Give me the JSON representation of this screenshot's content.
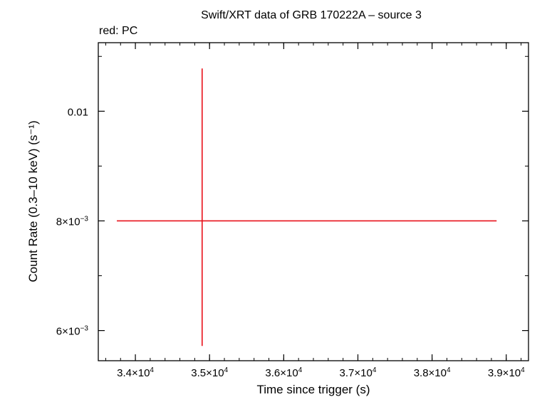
{
  "chart_data": {
    "type": "scatter",
    "title": "Swift/XRT data of GRB 170222A – source 3",
    "subtitle": "red: PC",
    "xlabel": "Time since trigger (s)",
    "ylabel": "Count Rate (0.3–10 keV) (s⁻¹)",
    "xlim": [
      33500,
      39300
    ],
    "ylim": [
      0.00545,
      0.01125
    ],
    "x_ticks": [
      {
        "value": 34000,
        "label": "3.4×10",
        "exp": "4"
      },
      {
        "value": 35000,
        "label": "3.5×10",
        "exp": "4"
      },
      {
        "value": 36000,
        "label": "3.6×10",
        "exp": "4"
      },
      {
        "value": 37000,
        "label": "3.7×10",
        "exp": "4"
      },
      {
        "value": 38000,
        "label": "3.8×10",
        "exp": "4"
      },
      {
        "value": 39000,
        "label": "3.9×10",
        "exp": "4"
      }
    ],
    "y_ticks": [
      {
        "value": 0.006,
        "label": "6×10",
        "exp": "−3"
      },
      {
        "value": 0.008,
        "label": "8×10",
        "exp": "−3"
      },
      {
        "value": 0.01,
        "label": "0.01",
        "exp": ""
      }
    ],
    "y_minor_ticks": [
      0.007,
      0.009,
      0.011
    ],
    "x_minor_step": 200,
    "series": [
      {
        "color": "#e8111a",
        "points": [
          {
            "x": 34900,
            "y": 0.008,
            "xerr_low": 1150,
            "xerr_high": 3970,
            "yerr_low": 0.00228,
            "yerr_high": 0.00278
          }
        ]
      }
    ],
    "grid": false
  }
}
